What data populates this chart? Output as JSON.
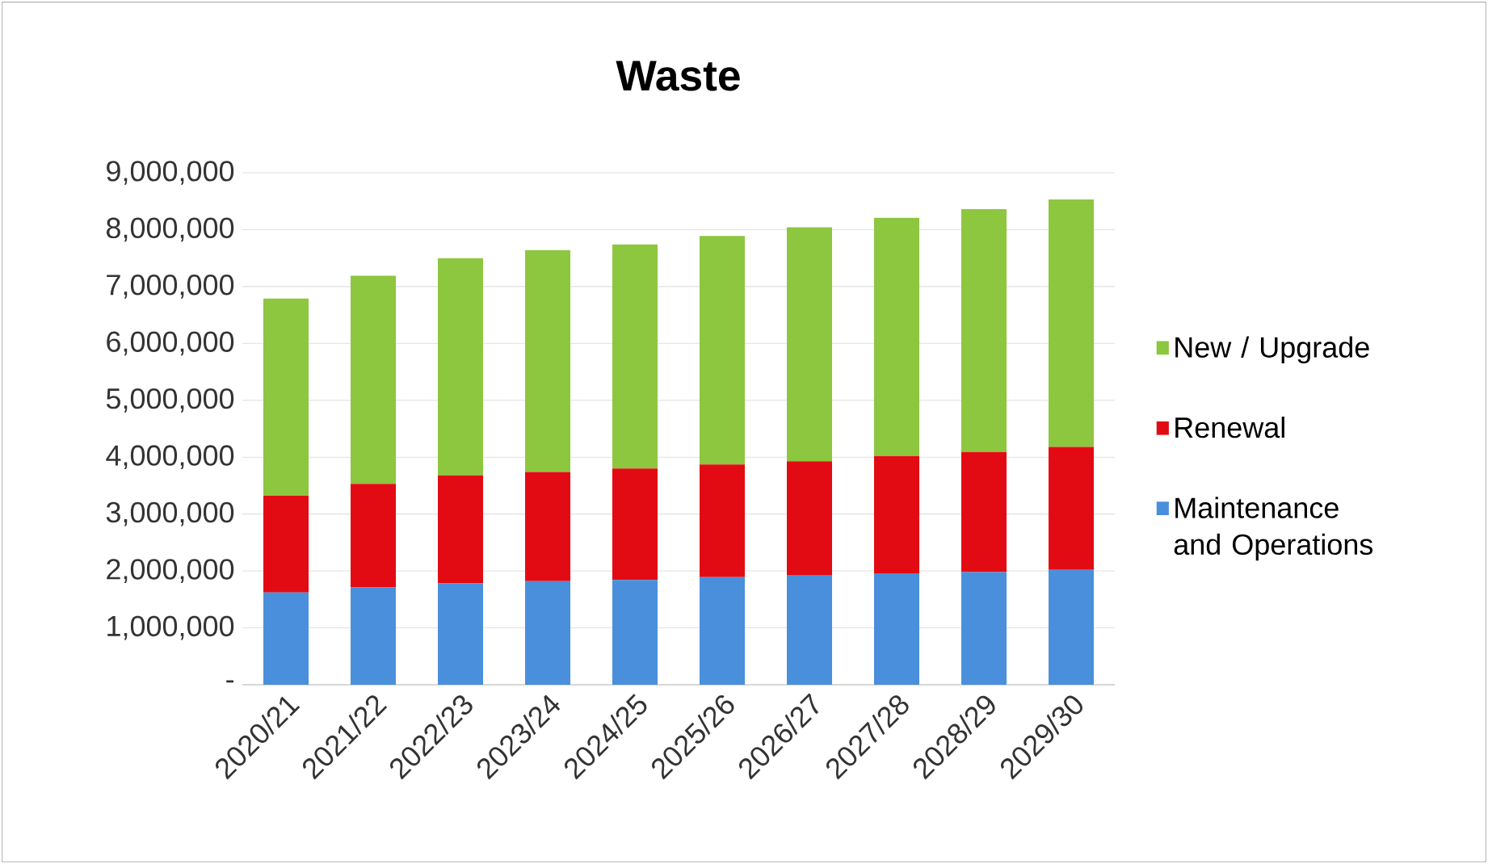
{
  "chart_data": {
    "type": "bar",
    "stacked": true,
    "title": "Waste",
    "categories": [
      "2020/21",
      "2021/22",
      "2022/23",
      "2023/24",
      "2024/25",
      "2025/26",
      "2026/27",
      "2027/28",
      "2028/29",
      "2029/30"
    ],
    "series": [
      {
        "name": "Maintenance and Operations",
        "color": "#4a8fdc",
        "values": [
          1620000,
          1710000,
          1780000,
          1820000,
          1840000,
          1890000,
          1920000,
          1960000,
          1980000,
          2020000
        ]
      },
      {
        "name": "Renewal",
        "color": "#e30b13",
        "values": [
          1700000,
          1820000,
          1900000,
          1920000,
          1960000,
          1980000,
          2010000,
          2060000,
          2110000,
          2160000
        ]
      },
      {
        "name": "New / Upgrade",
        "color": "#8dc63f",
        "values": [
          3470000,
          3660000,
          3820000,
          3900000,
          3940000,
          4020000,
          4110000,
          4190000,
          4270000,
          4350000
        ]
      }
    ],
    "ylim": [
      0,
      9000000
    ],
    "yticks": [
      {
        "value": 0,
        "label": "-"
      },
      {
        "value": 1000000,
        "label": "1,000,000"
      },
      {
        "value": 2000000,
        "label": "2,000,000"
      },
      {
        "value": 3000000,
        "label": "3,000,000"
      },
      {
        "value": 4000000,
        "label": "4,000,000"
      },
      {
        "value": 5000000,
        "label": "5,000,000"
      },
      {
        "value": 6000000,
        "label": "6,000,000"
      },
      {
        "value": 7000000,
        "label": "7,000,000"
      },
      {
        "value": 8000000,
        "label": "8,000,000"
      },
      {
        "value": 9000000,
        "label": "9,000,000"
      }
    ],
    "grid": "y",
    "legend": "right"
  }
}
